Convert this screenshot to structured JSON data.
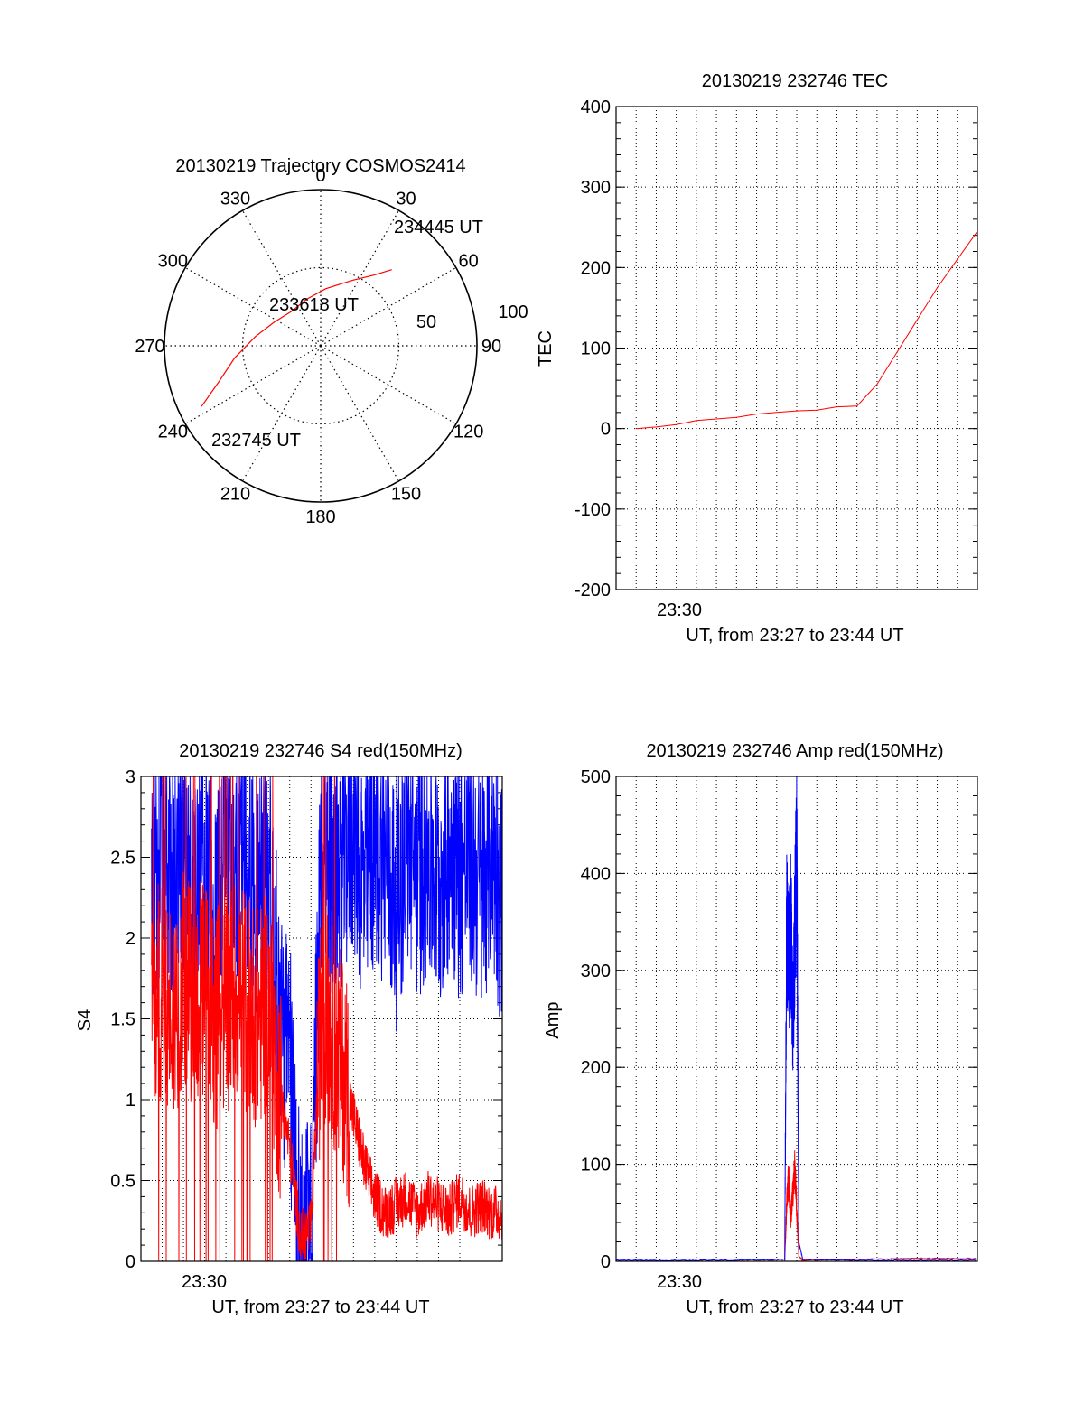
{
  "colors": {
    "red": "#ff0000",
    "blue": "#0000ff",
    "axis": "#000000",
    "grid": "#000000"
  },
  "chart_data": [
    {
      "type": "polar",
      "title": "20130219 Trajectory COSMOS2414",
      "angle_labels": [
        "0",
        "30",
        "60",
        "90",
        "120",
        "150",
        "180",
        "210",
        "240",
        "270",
        "300",
        "330"
      ],
      "radial_labels": [
        "50",
        "100"
      ],
      "series": [
        {
          "points": [
            {
              "az": 243,
              "el": 13
            },
            {
              "az": 250,
              "el": 27
            },
            {
              "az": 262,
              "el": 40
            },
            {
              "az": 278,
              "el": 52
            },
            {
              "az": 297,
              "el": 60
            },
            {
              "az": 320,
              "el": 64
            },
            {
              "az": 343,
              "el": 62
            },
            {
              "az": 5,
              "el": 57
            },
            {
              "az": 26,
              "el": 48
            },
            {
              "az": 37,
              "el": 39
            },
            {
              "az": 43,
              "el": 30
            }
          ]
        }
      ],
      "annotations": [
        "234445 UT",
        "233618 UT",
        "232745 UT"
      ],
      "grid": true
    },
    {
      "type": "line",
      "title": "20130219 232746 TEC",
      "xlabel": "UT, from 23:27 to 23:44 UT",
      "ylabel": "TEC",
      "x_tick_labels": [
        "23:30"
      ],
      "xlim": [
        23.45,
        23.75
      ],
      "ylim": [
        -200,
        400
      ],
      "yticks": [
        -200,
        -100,
        0,
        100,
        200,
        300,
        400
      ],
      "grid": true,
      "series": [
        {
          "color": "red",
          "x": [
            23.4667,
            23.4833,
            23.5,
            23.5167,
            23.5333,
            23.55,
            23.5667,
            23.5833,
            23.6,
            23.6167,
            23.6333,
            23.65,
            23.6667,
            23.6833,
            23.7,
            23.7167,
            23.7333,
            23.75
          ],
          "y": [
            0,
            2,
            5,
            10,
            12,
            14,
            18,
            20,
            22,
            23,
            27,
            28,
            55,
            95,
            135,
            175,
            210,
            245
          ]
        }
      ]
    },
    {
      "type": "line",
      "title": "20130219 232746 S4 red(150MHz)",
      "xlabel": "UT, from 23:27 to 23:44 UT",
      "ylabel": "S4",
      "x_tick_labels": [
        "23:30"
      ],
      "xlim": [
        23.45,
        23.7333
      ],
      "ylim": [
        0,
        3
      ],
      "yticks": [
        0,
        0.5,
        1,
        1.5,
        2,
        2.5,
        3
      ],
      "grid": true,
      "series": [
        {
          "color": "blue",
          "x": [
            23.4583,
            23.4667,
            23.475,
            23.4833,
            23.4917,
            23.5,
            23.5083,
            23.5167,
            23.525,
            23.5333,
            23.5417,
            23.55,
            23.5583,
            23.5667,
            23.575,
            23.5833,
            23.5917,
            23.6,
            23.6083,
            23.6167,
            23.625,
            23.6333,
            23.6417,
            23.65,
            23.6583,
            23.6667,
            23.675,
            23.6833,
            23.6917,
            23.7,
            23.7083,
            23.7167,
            23.725,
            23.7333
          ],
          "y": [
            2.3,
            2.5,
            2.3,
            2.6,
            2.2,
            2.5,
            2.1,
            2.6,
            2.4,
            2.5,
            2.2,
            2.5,
            1.5,
            1.2,
            0.1,
            0.1,
            2.6,
            2.4,
            2.5,
            2.7,
            2.3,
            2.6,
            2.5,
            2.2,
            2.6,
            2.4,
            2.5,
            2.3,
            2.6,
            2.4,
            2.5,
            2.3,
            2.6,
            2.2
          ]
        },
        {
          "color": "red",
          "x": [
            23.4583,
            23.4667,
            23.475,
            23.4833,
            23.4917,
            23.5,
            23.5083,
            23.5167,
            23.525,
            23.5333,
            23.5417,
            23.55,
            23.5583,
            23.5667,
            23.575,
            23.5833,
            23.5917,
            23.6,
            23.6083,
            23.6167,
            23.625,
            23.6333,
            23.6417,
            23.65,
            23.6583,
            23.6667,
            23.675,
            23.6833,
            23.6917,
            23.7,
            23.7083,
            23.7167,
            23.725,
            23.7333
          ],
          "y": [
            1.6,
            1.7,
            1.5,
            1.8,
            1.6,
            1.7,
            1.5,
            1.6,
            1.7,
            1.6,
            1.5,
            1.6,
            1.1,
            0.7,
            0.15,
            0.2,
            1.6,
            1.4,
            1.2,
            0.9,
            0.6,
            0.4,
            0.3,
            0.35,
            0.4,
            0.3,
            0.4,
            0.35,
            0.3,
            0.4,
            0.3,
            0.35,
            0.3,
            0.3
          ]
        }
      ]
    },
    {
      "type": "line",
      "title": "20130219 232746 Amp red(150MHz)",
      "xlabel": "UT, from 23:27 to 23:44 UT",
      "ylabel": "Amp",
      "x_tick_labels": [
        "23:30"
      ],
      "xlim": [
        23.45,
        23.75
      ],
      "ylim": [
        0,
        500
      ],
      "yticks": [
        0,
        100,
        200,
        300,
        400,
        500
      ],
      "grid": true,
      "series": [
        {
          "color": "red",
          "x": [
            23.45,
            23.5,
            23.55,
            23.59,
            23.5917,
            23.5933,
            23.595,
            23.5967,
            23.5983,
            23.6,
            23.6017,
            23.605,
            23.65,
            23.7,
            23.75
          ],
          "y": [
            0,
            0,
            0,
            0,
            60,
            85,
            45,
            70,
            95,
            55,
            5,
            1,
            2,
            3,
            3
          ]
        },
        {
          "color": "blue",
          "x": [
            23.45,
            23.5,
            23.55,
            23.59,
            23.5917,
            23.5933,
            23.595,
            23.5967,
            23.5983,
            23.6,
            23.6017,
            23.605,
            23.65,
            23.7,
            23.75
          ],
          "y": [
            1,
            1,
            1,
            2,
            360,
            300,
            350,
            250,
            330,
            430,
            20,
            2,
            1,
            1,
            1
          ]
        }
      ]
    }
  ]
}
